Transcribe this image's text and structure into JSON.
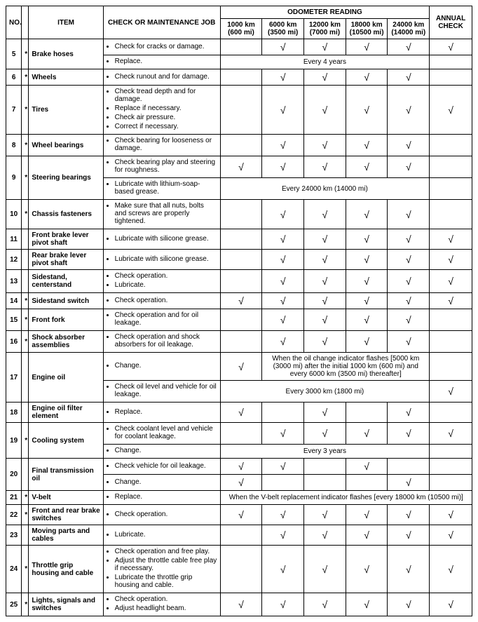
{
  "headers": {
    "no": "NO.",
    "item": "ITEM",
    "job": "CHECK OR MAINTENANCE JOB",
    "odometer_group": "ODOMETER READING",
    "annual": "ANNUAL CHECK",
    "odometer": [
      {
        "top": "1000 km",
        "bot": "(600 mi)"
      },
      {
        "top": "6000 km",
        "bot": "(3500 mi)"
      },
      {
        "top": "12000 km",
        "bot": "(7000 mi)"
      },
      {
        "top": "18000 km",
        "bot": "(10500 mi)"
      },
      {
        "top": "24000 km",
        "bot": "(14000 mi)"
      }
    ]
  },
  "check": "√",
  "rows": [
    {
      "no": "5",
      "star": "*",
      "item": "Brake hoses",
      "sub": [
        {
          "jobs": [
            "Check for cracks or damage."
          ],
          "cols": [
            "",
            "c",
            "c",
            "c",
            "c",
            "c"
          ]
        },
        {
          "jobs": [
            "Replace."
          ],
          "note5": "Every 4 years",
          "ann": ""
        }
      ]
    },
    {
      "no": "6",
      "star": "*",
      "item": "Wheels",
      "sub": [
        {
          "jobs": [
            "Check runout and for damage."
          ],
          "cols": [
            "",
            "c",
            "c",
            "c",
            "c",
            ""
          ]
        }
      ]
    },
    {
      "no": "7",
      "star": "*",
      "item": "Tires",
      "sub": [
        {
          "jobs": [
            "Check tread depth and for damage.",
            "Replace if necessary.",
            "Check air pressure.",
            "Correct if necessary."
          ],
          "cols": [
            "",
            "c",
            "c",
            "c",
            "c",
            "c"
          ]
        }
      ]
    },
    {
      "no": "8",
      "star": "*",
      "item": "Wheel bearings",
      "sub": [
        {
          "jobs": [
            "Check bearing for looseness or damage."
          ],
          "cols": [
            "",
            "c",
            "c",
            "c",
            "c",
            ""
          ]
        }
      ]
    },
    {
      "no": "9",
      "star": "*",
      "item": "Steering bearings",
      "sub": [
        {
          "jobs": [
            "Check bearing play and steering for roughness."
          ],
          "cols": [
            "c",
            "c",
            "c",
            "c",
            "c",
            ""
          ]
        },
        {
          "jobs": [
            "Lubricate with lithium-soap-based grease."
          ],
          "note5": "Every 24000 km (14000 mi)",
          "ann": ""
        }
      ]
    },
    {
      "no": "10",
      "star": "*",
      "item": "Chassis fasteners",
      "sub": [
        {
          "jobs": [
            "Make sure that all nuts, bolts and screws are properly tightened."
          ],
          "cols": [
            "",
            "c",
            "c",
            "c",
            "c",
            ""
          ]
        }
      ]
    },
    {
      "no": "11",
      "star": "",
      "item": "Front brake lever pivot shaft",
      "sub": [
        {
          "jobs": [
            "Lubricate with silicone grease."
          ],
          "cols": [
            "",
            "c",
            "c",
            "c",
            "c",
            "c"
          ]
        }
      ]
    },
    {
      "no": "12",
      "star": "",
      "item": "Rear brake lever pivot shaft",
      "sub": [
        {
          "jobs": [
            "Lubricate with silicone grease."
          ],
          "cols": [
            "",
            "c",
            "c",
            "c",
            "c",
            "c"
          ]
        }
      ]
    },
    {
      "no": "13",
      "star": "",
      "item": "Sidestand, centerstand",
      "sub": [
        {
          "jobs": [
            "Check operation.",
            "Lubricate."
          ],
          "cols": [
            "",
            "c",
            "c",
            "c",
            "c",
            "c"
          ]
        }
      ]
    },
    {
      "no": "14",
      "star": "*",
      "item": "Sidestand switch",
      "sub": [
        {
          "jobs": [
            "Check operation."
          ],
          "cols": [
            "c",
            "c",
            "c",
            "c",
            "c",
            "c"
          ]
        }
      ]
    },
    {
      "no": "15",
      "star": "*",
      "item": "Front fork",
      "sub": [
        {
          "jobs": [
            "Check operation and for oil leakage."
          ],
          "cols": [
            "",
            "c",
            "c",
            "c",
            "c",
            ""
          ]
        }
      ]
    },
    {
      "no": "16",
      "star": "*",
      "item": "Shock absorber assemblies",
      "sub": [
        {
          "jobs": [
            "Check operation and shock absorbers for oil leakage."
          ],
          "cols": [
            "",
            "c",
            "c",
            "c",
            "c",
            ""
          ]
        }
      ]
    },
    {
      "no": "17",
      "star": "",
      "item": "Engine oil",
      "sub": [
        {
          "jobs": [
            "Change."
          ],
          "first": "c",
          "note4": "When the oil change indicator flashes [5000 km (3000 mi) after the initial 1000 km (600 mi) and every 6000 km (3500 mi) thereafter]",
          "ann": ""
        },
        {
          "jobs": [
            "Check oil level and vehicle for oil leakage."
          ],
          "note5": "Every 3000 km (1800 mi)",
          "ann": "c"
        }
      ]
    },
    {
      "no": "18",
      "star": "",
      "item": "Engine oil filter element",
      "sub": [
        {
          "jobs": [
            "Replace."
          ],
          "cols": [
            "c",
            "",
            "c",
            "",
            "c",
            ""
          ]
        }
      ]
    },
    {
      "no": "19",
      "star": "*",
      "item": "Cooling system",
      "sub": [
        {
          "jobs": [
            "Check coolant level and vehicle for coolant leakage."
          ],
          "cols": [
            "",
            "c",
            "c",
            "c",
            "c",
            "c"
          ]
        },
        {
          "jobs": [
            "Change."
          ],
          "note5": "Every 3 years",
          "ann": ""
        }
      ]
    },
    {
      "no": "20",
      "star": "",
      "item": "Final transmission oil",
      "sub": [
        {
          "jobs": [
            "Check vehicle for oil leakage."
          ],
          "cols": [
            "c",
            "c",
            "",
            "c",
            "",
            ""
          ]
        },
        {
          "jobs": [
            "Change."
          ],
          "cols": [
            "c",
            "",
            "",
            "",
            "c",
            ""
          ]
        }
      ]
    },
    {
      "no": "21",
      "star": "*",
      "item": "V-belt",
      "sub": [
        {
          "jobs": [
            "Replace."
          ],
          "note6": "When the V-belt replacement indicator flashes [every 18000 km (10500 mi)]"
        }
      ]
    },
    {
      "no": "22",
      "star": "*",
      "item": "Front and rear brake switches",
      "sub": [
        {
          "jobs": [
            "Check operation."
          ],
          "cols": [
            "c",
            "c",
            "c",
            "c",
            "c",
            "c"
          ]
        }
      ]
    },
    {
      "no": "23",
      "star": "",
      "item": "Moving parts and cables",
      "sub": [
        {
          "jobs": [
            "Lubricate."
          ],
          "cols": [
            "",
            "c",
            "c",
            "c",
            "c",
            "c"
          ]
        }
      ]
    },
    {
      "no": "24",
      "star": "*",
      "item": "Throttle grip housing and cable",
      "sub": [
        {
          "jobs": [
            "Check operation and free play.",
            "Adjust the throttle cable free play if necessary.",
            "Lubricate the throttle grip housing and cable."
          ],
          "cols": [
            "",
            "c",
            "c",
            "c",
            "c",
            "c"
          ]
        }
      ]
    },
    {
      "no": "25",
      "star": "*",
      "item": "Lights, signals and switches",
      "sub": [
        {
          "jobs": [
            "Check operation.",
            "Adjust headlight beam."
          ],
          "cols": [
            "c",
            "c",
            "c",
            "c",
            "c",
            "c"
          ]
        }
      ]
    }
  ]
}
